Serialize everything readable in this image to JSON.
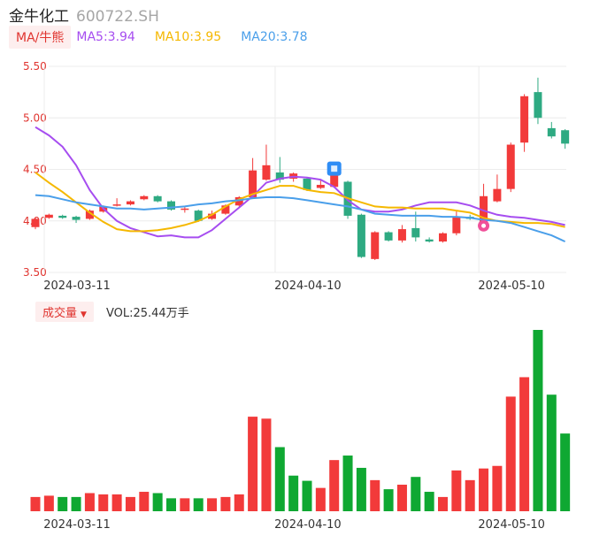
{
  "header": {
    "name": "金牛化工",
    "code": "600722.SH"
  },
  "ma_legend": {
    "switch_label": "MA/牛熊",
    "items": [
      {
        "label": "MA5:3.94",
        "color": "#a64df0"
      },
      {
        "label": "MA10:3.95",
        "color": "#f5b800"
      },
      {
        "label": "MA20:3.78",
        "color": "#4a9fea"
      }
    ]
  },
  "volume_legend": {
    "switch_label": "成交量",
    "value_label": "VOL:25.44万手"
  },
  "colors": {
    "up": "#f23a3a",
    "down": "#0fa832",
    "down_candle": "#2eaa82",
    "axis_label": "#e0342f"
  },
  "chart_data": [
    {
      "type": "candlestick",
      "y_ticks": [
        "5.50",
        "5.00",
        "4.50",
        "4.00",
        "3.50"
      ],
      "ylim": [
        3.5,
        5.5
      ],
      "x_ticks": [
        {
          "label": "2024-03-11",
          "index": 0
        },
        {
          "label": "2024-04-10",
          "index": 17
        },
        {
          "label": "2024-05-10",
          "index": 32
        }
      ],
      "candles": [
        {
          "o": 3.94,
          "c": 4.02,
          "h": 4.03,
          "l": 3.92
        },
        {
          "o": 4.03,
          "c": 4.06,
          "h": 4.07,
          "l": 4.02
        },
        {
          "o": 4.05,
          "c": 4.03,
          "h": 4.06,
          "l": 4.02
        },
        {
          "o": 4.04,
          "c": 4.01,
          "h": 4.05,
          "l": 3.98
        },
        {
          "o": 4.02,
          "c": 4.1,
          "h": 4.11,
          "l": 4.01
        },
        {
          "o": 4.09,
          "c": 4.14,
          "h": 4.15,
          "l": 4.08
        },
        {
          "o": 4.16,
          "c": 4.16,
          "h": 4.22,
          "l": 4.14
        },
        {
          "o": 4.16,
          "c": 4.19,
          "h": 4.2,
          "l": 4.15
        },
        {
          "o": 4.21,
          "c": 4.24,
          "h": 4.25,
          "l": 4.2
        },
        {
          "o": 4.24,
          "c": 4.19,
          "h": 4.25,
          "l": 4.18
        },
        {
          "o": 4.19,
          "c": 4.11,
          "h": 4.2,
          "l": 4.1
        },
        {
          "o": 4.12,
          "c": 4.12,
          "h": 4.14,
          "l": 4.08
        },
        {
          "o": 4.1,
          "c": 4.0,
          "h": 4.11,
          "l": 3.99
        },
        {
          "o": 4.02,
          "c": 4.07,
          "h": 4.1,
          "l": 4.01
        },
        {
          "o": 4.07,
          "c": 4.15,
          "h": 4.16,
          "l": 4.06
        },
        {
          "o": 4.15,
          "c": 4.23,
          "h": 4.24,
          "l": 4.14
        },
        {
          "o": 4.23,
          "c": 4.49,
          "h": 4.61,
          "l": 4.22
        },
        {
          "o": 4.4,
          "c": 4.54,
          "h": 4.74,
          "l": 4.39
        },
        {
          "o": 4.47,
          "c": 4.4,
          "h": 4.62,
          "l": 4.37
        },
        {
          "o": 4.41,
          "c": 4.46,
          "h": 4.47,
          "l": 4.38
        },
        {
          "o": 4.41,
          "c": 4.3,
          "h": 4.42,
          "l": 4.29
        },
        {
          "o": 4.32,
          "c": 4.35,
          "h": 4.4,
          "l": 4.31
        },
        {
          "o": 4.33,
          "c": 4.45,
          "h": 4.55,
          "l": 4.32
        },
        {
          "o": 4.38,
          "c": 4.05,
          "h": 4.39,
          "l": 4.02
        },
        {
          "o": 4.06,
          "c": 3.65,
          "h": 4.07,
          "l": 3.64
        },
        {
          "o": 3.63,
          "c": 3.89,
          "h": 3.9,
          "l": 3.62
        },
        {
          "o": 3.89,
          "c": 3.81,
          "h": 3.9,
          "l": 3.8
        },
        {
          "o": 3.81,
          "c": 3.92,
          "h": 3.96,
          "l": 3.79
        },
        {
          "o": 3.93,
          "c": 3.84,
          "h": 4.09,
          "l": 3.8
        },
        {
          "o": 3.82,
          "c": 3.8,
          "h": 3.84,
          "l": 3.79
        },
        {
          "o": 3.8,
          "c": 3.88,
          "h": 3.89,
          "l": 3.79
        },
        {
          "o": 3.88,
          "c": 4.04,
          "h": 4.1,
          "l": 3.86
        },
        {
          "o": 4.04,
          "c": 4.02,
          "h": 4.06,
          "l": 4.01
        },
        {
          "o": 3.97,
          "c": 4.24,
          "h": 4.36,
          "l": 3.96
        },
        {
          "o": 4.19,
          "c": 4.31,
          "h": 4.45,
          "l": 4.18
        },
        {
          "o": 4.31,
          "c": 4.74,
          "h": 4.76,
          "l": 4.28
        },
        {
          "o": 4.76,
          "c": 5.21,
          "h": 5.23,
          "l": 4.67
        },
        {
          "o": 5.25,
          "c": 5.0,
          "h": 5.39,
          "l": 4.94
        },
        {
          "o": 4.9,
          "c": 4.82,
          "h": 4.96,
          "l": 4.8
        },
        {
          "o": 4.88,
          "c": 4.75,
          "h": 4.89,
          "l": 4.7
        }
      ],
      "series": [
        {
          "name": "MA5",
          "color": "#a64df0",
          "values": [
            4.91,
            4.83,
            4.72,
            4.54,
            4.3,
            4.12,
            4.0,
            3.93,
            3.89,
            3.85,
            3.86,
            3.84,
            3.84,
            3.91,
            4.02,
            4.13,
            4.24,
            4.37,
            4.41,
            4.43,
            4.42,
            4.4,
            4.33,
            4.2,
            4.11,
            4.09,
            4.09,
            4.11,
            4.15,
            4.18,
            4.18,
            4.18,
            4.15,
            4.1,
            4.06,
            4.04,
            4.03,
            4.01,
            3.99,
            3.96
          ]
        },
        {
          "name": "MA10",
          "color": "#f5b800",
          "values": [
            4.47,
            4.37,
            4.28,
            4.18,
            4.08,
            3.99,
            3.92,
            3.9,
            3.9,
            3.91,
            3.93,
            3.96,
            4.0,
            4.06,
            4.14,
            4.21,
            4.26,
            4.3,
            4.34,
            4.34,
            4.3,
            4.28,
            4.27,
            4.22,
            4.18,
            4.14,
            4.13,
            4.13,
            4.12,
            4.12,
            4.12,
            4.1,
            4.08,
            4.03,
            4.0,
            3.99,
            3.98,
            3.98,
            3.97,
            3.94
          ]
        },
        {
          "name": "MA20",
          "color": "#4a9fea",
          "values": [
            4.25,
            4.24,
            4.21,
            4.18,
            4.16,
            4.14,
            4.12,
            4.12,
            4.11,
            4.12,
            4.13,
            4.14,
            4.16,
            4.17,
            4.19,
            4.2,
            4.22,
            4.23,
            4.23,
            4.22,
            4.2,
            4.18,
            4.16,
            4.14,
            4.11,
            4.07,
            4.06,
            4.05,
            4.05,
            4.05,
            4.04,
            4.04,
            4.03,
            4.01,
            4.0,
            3.98,
            3.94,
            3.9,
            3.86,
            3.8
          ]
        }
      ],
      "markers": [
        {
          "index": 22,
          "kind": "blue-badge"
        },
        {
          "index": 33,
          "kind": "pink-badge"
        }
      ]
    },
    {
      "type": "bar",
      "title": "成交量",
      "x_ticks": [
        {
          "label": "2024-03-11",
          "index": 0
        },
        {
          "label": "2024-04-10",
          "index": 17
        },
        {
          "label": "2024-05-10",
          "index": 32
        }
      ],
      "values": [
        2.2,
        2.4,
        2.2,
        2.2,
        2.8,
        2.6,
        2.6,
        2.2,
        3.0,
        2.8,
        2.0,
        2.0,
        2.0,
        2.0,
        2.2,
        2.6,
        14.6,
        14.3,
        9.9,
        5.5,
        4.7,
        3.6,
        7.9,
        8.6,
        6.7,
        4.8,
        3.4,
        4.1,
        5.3,
        3.0,
        2.2,
        6.3,
        4.8,
        6.6,
        7.0,
        17.7,
        20.7,
        28.0,
        18.0,
        12.0
      ],
      "colors": [
        "up",
        "up",
        "down",
        "down",
        "up",
        "up",
        "up",
        "up",
        "up",
        "down",
        "down",
        "up",
        "down",
        "up",
        "up",
        "up",
        "up",
        "up",
        "down",
        "down",
        "down",
        "up",
        "up",
        "down",
        "down",
        "up",
        "down",
        "up",
        "down",
        "down",
        "up",
        "up",
        "up",
        "up",
        "up",
        "up",
        "up",
        "down",
        "down",
        "down"
      ]
    }
  ]
}
